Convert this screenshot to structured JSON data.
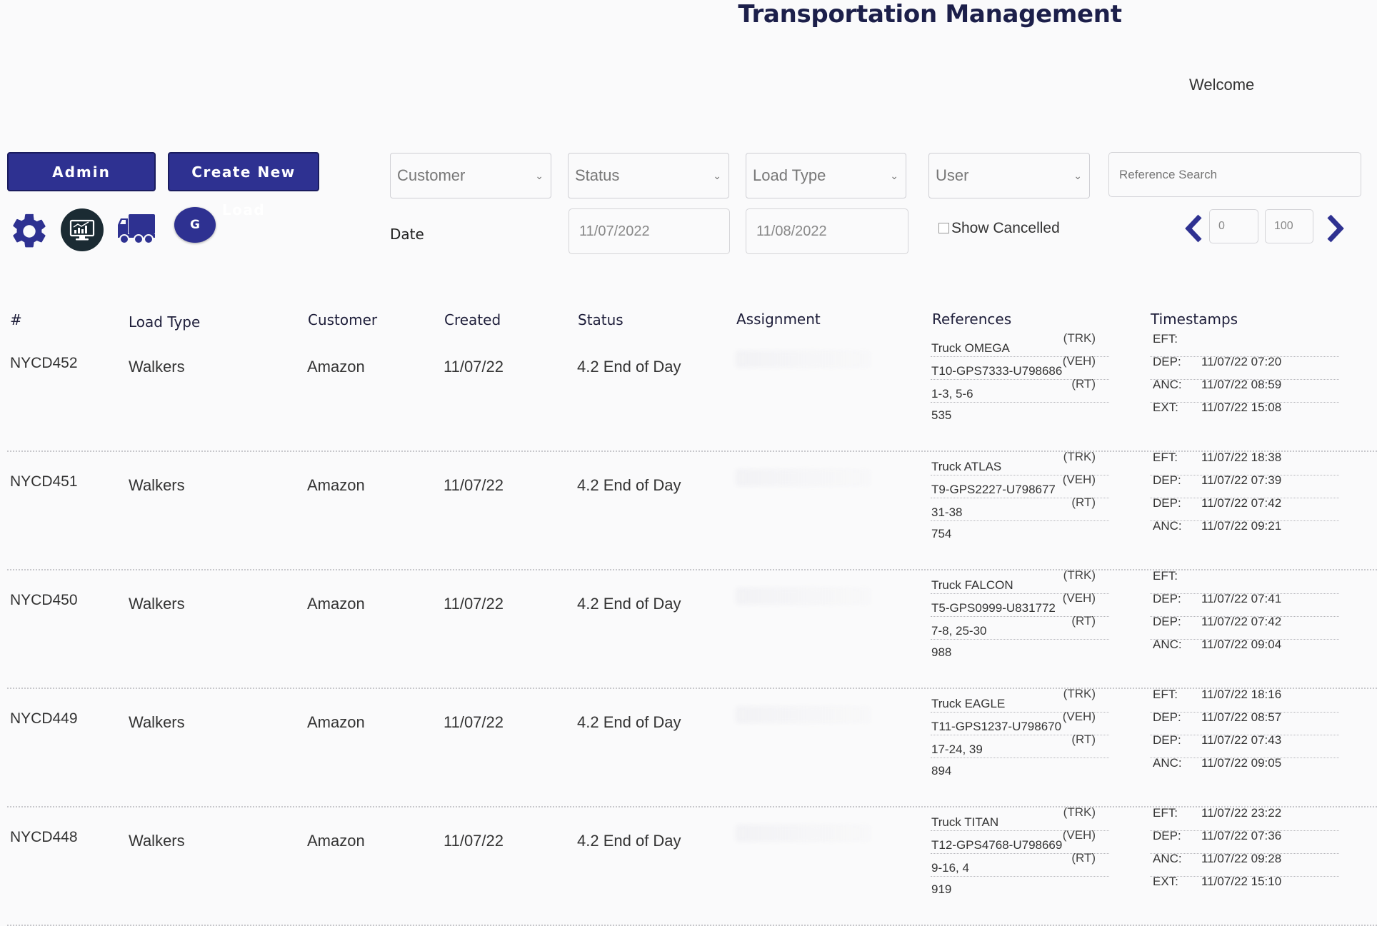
{
  "header": {
    "title": "Transportation Management",
    "welcome": "Welcome"
  },
  "toolbar": {
    "admin_label": "Admin",
    "create_label": "Create New Load",
    "avatar_initial": "G"
  },
  "icons": {
    "settings": "gear-icon",
    "dashboard": "monitor-chart-icon",
    "trucks": "truck-icon",
    "prev": "chevron-left-icon",
    "next": "chevron-right-icon"
  },
  "filters": {
    "customer": "Customer",
    "status": "Status",
    "load_type": "Load Type",
    "user": "User",
    "reference_placeholder": "Reference Search",
    "date_label": "Date",
    "date_from": "11/07/2022",
    "date_to": "11/08/2022",
    "show_cancelled": "Show Cancelled",
    "page_start": "0",
    "page_size": "100"
  },
  "table": {
    "headers": {
      "id": "#",
      "load_type": "Load Type",
      "customer": "Customer",
      "created": "Created",
      "status": "Status",
      "assignment": "Assignment",
      "references": "References",
      "timestamps": "Timestamps"
    },
    "rows": [
      {
        "id": "NYCD452",
        "load_type": "Walkers",
        "customer": "Amazon",
        "created": "11/07/22",
        "status": "4.2 End of Day",
        "refs": [
          {
            "value": "Truck OMEGA",
            "tag": "(TRK)"
          },
          {
            "value": "T10-GPS7333-U798686",
            "tag": "(VEH)"
          },
          {
            "value": "1-3, 5-6",
            "tag": "(RT)"
          }
        ],
        "ref_extra": "535",
        "timestamps": [
          {
            "k": "EFT:",
            "v": ""
          },
          {
            "k": "DEP:",
            "v": "11/07/22 07:20"
          },
          {
            "k": "ANC:",
            "v": "11/07/22 08:59"
          },
          {
            "k": "EXT:",
            "v": "11/07/22 15:08"
          }
        ]
      },
      {
        "id": "NYCD451",
        "load_type": "Walkers",
        "customer": "Amazon",
        "created": "11/07/22",
        "status": "4.2 End of Day",
        "refs": [
          {
            "value": "Truck ATLAS",
            "tag": "(TRK)"
          },
          {
            "value": "T9-GPS2227-U798677",
            "tag": "(VEH)"
          },
          {
            "value": "31-38",
            "tag": "(RT)"
          }
        ],
        "ref_extra": "754",
        "timestamps": [
          {
            "k": "EFT:",
            "v": "11/07/22 18:38"
          },
          {
            "k": "DEP:",
            "v": "11/07/22 07:39"
          },
          {
            "k": "DEP:",
            "v": "11/07/22 07:42"
          },
          {
            "k": "ANC:",
            "v": "11/07/22 09:21"
          }
        ]
      },
      {
        "id": "NYCD450",
        "load_type": "Walkers",
        "customer": "Amazon",
        "created": "11/07/22",
        "status": "4.2 End of Day",
        "refs": [
          {
            "value": "Truck FALCON",
            "tag": "(TRK)"
          },
          {
            "value": "T5-GPS0999-U831772",
            "tag": "(VEH)"
          },
          {
            "value": "7-8, 25-30",
            "tag": "(RT)"
          }
        ],
        "ref_extra": "988",
        "timestamps": [
          {
            "k": "EFT:",
            "v": ""
          },
          {
            "k": "DEP:",
            "v": "11/07/22 07:41"
          },
          {
            "k": "DEP:",
            "v": "11/07/22 07:42"
          },
          {
            "k": "ANC:",
            "v": "11/07/22 09:04"
          }
        ]
      },
      {
        "id": "NYCD449",
        "load_type": "Walkers",
        "customer": "Amazon",
        "created": "11/07/22",
        "status": "4.2 End of Day",
        "refs": [
          {
            "value": "Truck EAGLE",
            "tag": "(TRK)"
          },
          {
            "value": "T11-GPS1237-U798670",
            "tag": "(VEH)"
          },
          {
            "value": "17-24, 39",
            "tag": "(RT)"
          }
        ],
        "ref_extra": "894",
        "timestamps": [
          {
            "k": "EFT:",
            "v": "11/07/22 18:16"
          },
          {
            "k": "DEP:",
            "v": "11/07/22 08:57"
          },
          {
            "k": "DEP:",
            "v": "11/07/22 07:43"
          },
          {
            "k": "ANC:",
            "v": "11/07/22 09:05"
          }
        ]
      },
      {
        "id": "NYCD448",
        "load_type": "Walkers",
        "customer": "Amazon",
        "created": "11/07/22",
        "status": "4.2 End of Day",
        "refs": [
          {
            "value": "Truck TITAN",
            "tag": "(TRK)"
          },
          {
            "value": "T12-GPS4768-U798669",
            "tag": "(VEH)"
          },
          {
            "value": "9-16, 4",
            "tag": "(RT)"
          }
        ],
        "ref_extra": "919",
        "timestamps": [
          {
            "k": "EFT:",
            "v": "11/07/22 23:22"
          },
          {
            "k": "DEP:",
            "v": "11/07/22 07:36"
          },
          {
            "k": "ANC:",
            "v": "11/07/22 09:28"
          },
          {
            "k": "EXT:",
            "v": "11/07/22 15:10"
          }
        ]
      }
    ]
  }
}
